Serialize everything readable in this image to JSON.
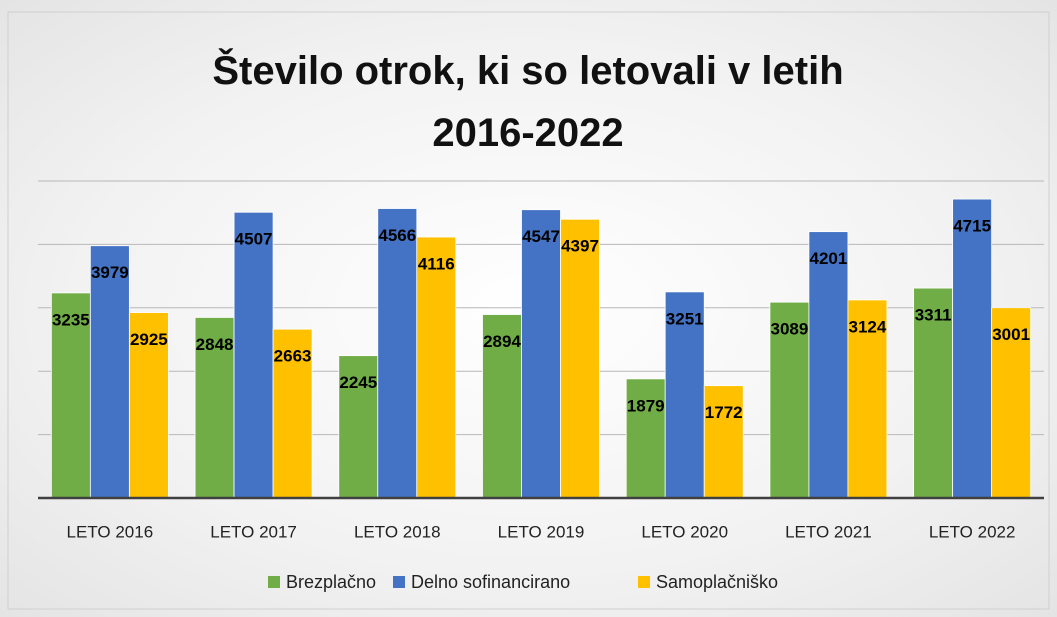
{
  "chart_data": {
    "type": "bar",
    "title": "Število otrok, ki so letovali v letih 2016-2022",
    "categories": [
      "LETO 2016",
      "LETO 2017",
      "LETO 2018",
      "LETO 2019",
      "LETO 2020",
      "LETO 2021",
      "LETO 2022"
    ],
    "series": [
      {
        "name": "Brezplačno",
        "color": "#70ad47",
        "values": [
          3235,
          2848,
          2245,
          2894,
          1879,
          3089,
          3311
        ]
      },
      {
        "name": "Delno sofinancirano",
        "color": "#4472c4",
        "values": [
          3979,
          4507,
          4566,
          4547,
          3251,
          4201,
          4715
        ]
      },
      {
        "name": "Samoplačniško",
        "color": "#ffc000",
        "values": [
          2925,
          2663,
          4116,
          4397,
          1772,
          3124,
          3001
        ]
      }
    ],
    "ylim": [
      0,
      5000
    ],
    "yticks": [
      0,
      1000,
      2000,
      3000,
      4000,
      5000
    ],
    "grid": true,
    "legend": "bottom"
  }
}
